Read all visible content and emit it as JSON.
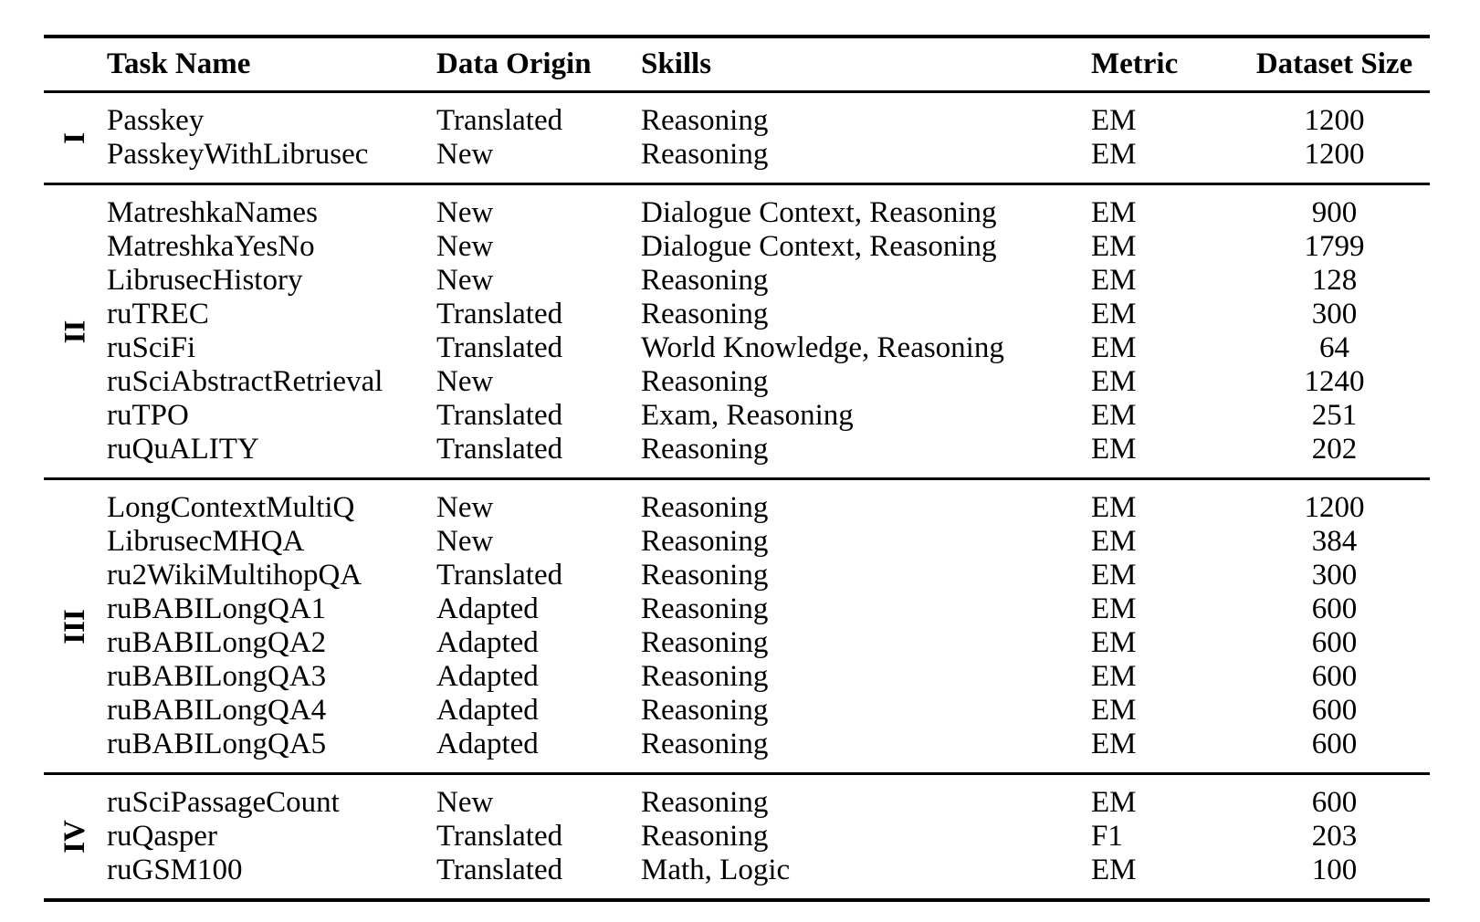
{
  "table": {
    "columns": {
      "task": "Task Name",
      "origin": "Data Origin",
      "skills": "Skills",
      "metric": "Metric",
      "size": "Dataset Size"
    },
    "text_color": "#000000",
    "background_color": "#ffffff",
    "groups": [
      {
        "label": "I",
        "rows": [
          {
            "task": "Passkey",
            "origin": "Translated",
            "skills": "Reasoning",
            "metric": "EM",
            "size": "1200"
          },
          {
            "task": "PasskeyWithLibrusec",
            "origin": "New",
            "skills": "Reasoning",
            "metric": "EM",
            "size": "1200"
          }
        ]
      },
      {
        "label": "II",
        "rows": [
          {
            "task": "MatreshkaNames",
            "origin": "New",
            "skills": "Dialogue Context, Reasoning",
            "metric": "EM",
            "size": "900"
          },
          {
            "task": "MatreshkaYesNo",
            "origin": "New",
            "skills": "Dialogue Context, Reasoning",
            "metric": "EM",
            "size": "1799"
          },
          {
            "task": "LibrusecHistory",
            "origin": "New",
            "skills": "Reasoning",
            "metric": "EM",
            "size": "128"
          },
          {
            "task": "ruTREC",
            "origin": "Translated",
            "skills": "Reasoning",
            "metric": "EM",
            "size": "300"
          },
          {
            "task": "ruSciFi",
            "origin": "Translated",
            "skills": "World Knowledge, Reasoning",
            "metric": "EM",
            "size": "64"
          },
          {
            "task": "ruSciAbstractRetrieval",
            "origin": "New",
            "skills": "Reasoning",
            "metric": "EM",
            "size": "1240"
          },
          {
            "task": "ruTPO",
            "origin": "Translated",
            "skills": "Exam, Reasoning",
            "metric": "EM",
            "size": "251"
          },
          {
            "task": "ruQuALITY",
            "origin": "Translated",
            "skills": "Reasoning",
            "metric": "EM",
            "size": "202"
          }
        ]
      },
      {
        "label": "III",
        "rows": [
          {
            "task": "LongContextMultiQ",
            "origin": "New",
            "skills": "Reasoning",
            "metric": "EM",
            "size": "1200"
          },
          {
            "task": "LibrusecMHQA",
            "origin": "New",
            "skills": "Reasoning",
            "metric": "EM",
            "size": "384"
          },
          {
            "task": "ru2WikiMultihopQA",
            "origin": "Translated",
            "skills": "Reasoning",
            "metric": "EM",
            "size": "300"
          },
          {
            "task": "ruBABILongQA1",
            "origin": "Adapted",
            "skills": "Reasoning",
            "metric": "EM",
            "size": "600"
          },
          {
            "task": "ruBABILongQA2",
            "origin": "Adapted",
            "skills": "Reasoning",
            "metric": "EM",
            "size": "600"
          },
          {
            "task": "ruBABILongQA3",
            "origin": "Adapted",
            "skills": "Reasoning",
            "metric": "EM",
            "size": "600"
          },
          {
            "task": "ruBABILongQA4",
            "origin": "Adapted",
            "skills": "Reasoning",
            "metric": "EM",
            "size": "600"
          },
          {
            "task": "ruBABILongQA5",
            "origin": "Adapted",
            "skills": "Reasoning",
            "metric": "EM",
            "size": "600"
          }
        ]
      },
      {
        "label": "IV",
        "rows": [
          {
            "task": "ruSciPassageCount",
            "origin": "New",
            "skills": "Reasoning",
            "metric": "EM",
            "size": "600"
          },
          {
            "task": "ruQasper",
            "origin": "Translated",
            "skills": "Reasoning",
            "metric": "F1",
            "size": "203"
          },
          {
            "task": "ruGSM100",
            "origin": "Translated",
            "skills": "Math, Logic",
            "metric": "EM",
            "size": "100"
          }
        ]
      }
    ]
  }
}
